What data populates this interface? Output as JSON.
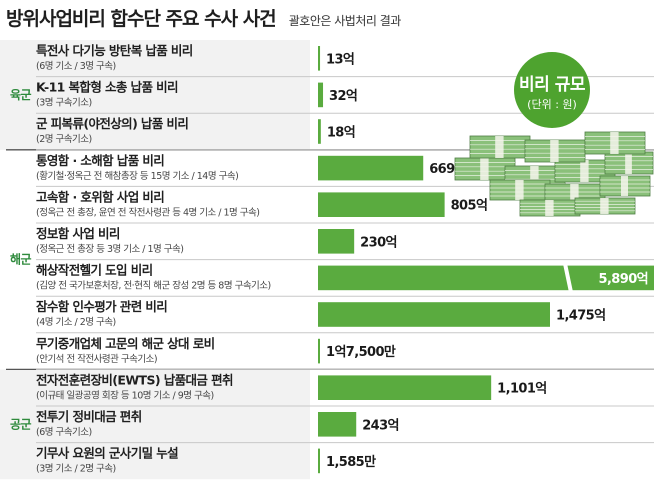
{
  "header": {
    "title": "방위사업비리 합수단 주요 수사 사건",
    "subtitle": "괄호안은 사법처리 결과"
  },
  "badge": {
    "title": "비리 규모",
    "unit": "(단위 : 원)"
  },
  "colors": {
    "bar": "#5aab3f",
    "branch_label": "#2e8a3c",
    "badge": "#4ea32f",
    "band": "#f2f2f2",
    "money": "#8ac07a"
  },
  "chart_data": {
    "type": "bar",
    "orientation": "horizontal",
    "unit": "원",
    "title": "방위사업비리 합수단 주요 수사 사건",
    "groups": [
      {
        "name": "육군",
        "items": [
          0,
          1,
          2
        ]
      },
      {
        "name": "해군",
        "items": [
          3,
          4,
          5,
          6,
          7,
          8
        ]
      },
      {
        "name": "공군",
        "items": [
          9,
          10,
          11
        ]
      }
    ],
    "items": [
      {
        "label": "특전사 다기능 방탄복 납품 비리",
        "detail": "(6명 기소 / 3명 구속)",
        "value": 1300000000,
        "value_label": "13억"
      },
      {
        "label": "K-11 복합형 소총 납품 비리",
        "detail": "(3명 구속기소)",
        "value": 3200000000,
        "value_label": "32억"
      },
      {
        "label": "군 피복류(야전상의) 납품 비리",
        "detail": "(2명 구속기소)",
        "value": 1800000000,
        "value_label": "18억"
      },
      {
        "label": "통영함 · 소해함 납품 비리",
        "detail": "(황기철·정옥근 전 해참총장 등 15명 기소 / 14명 구속)",
        "value": 66900000000,
        "value_label": "669억"
      },
      {
        "label": "고속함 · 호위함 사업 비리",
        "detail": "(정옥근 전 총장, 윤연 전 작전사령관  등 4명 기소 / 1명 구속)",
        "value": 80500000000,
        "value_label": "805억"
      },
      {
        "label": "정보함 사업 비리",
        "detail": "(정옥근 전 총장 등 3명 기소 / 1명 구속)",
        "value": 23000000000,
        "value_label": "230억"
      },
      {
        "label": "해상작전헬기 도입 비리",
        "detail": "(김양 전 국가보훈처장, 전·현직 해군 장성 2명 등 8명 구속기소)",
        "value": 589000000000,
        "value_label": "5,890억"
      },
      {
        "label": "잠수함 인수평가 관련 비리",
        "detail": "(4명 기소 / 2명 구속)",
        "value": 147500000000,
        "value_label": "1,475억"
      },
      {
        "label": "무기중개업체 고문의 해군 상대 로비",
        "detail": "(안기석 전 작전사령관 구속기소)",
        "value": 175000000,
        "value_label": "1억7,500만"
      },
      {
        "label": "전자전훈련장비(EWTS) 납품대금 편취",
        "detail": "(이규태 일광공영 회장 등 10명 기소 / 9명 구속)",
        "value": 110100000000,
        "value_label": "1,101억"
      },
      {
        "label": "전투기 정비대금 편취",
        "detail": "(6명 구속기소)",
        "value": 24300000000,
        "value_label": "243억"
      },
      {
        "label": "기무사 요원의 군사기밀 누설",
        "detail": "(3명 기소 / 2명 구속)",
        "value": 15850000,
        "value_label": "1,585만"
      }
    ]
  }
}
